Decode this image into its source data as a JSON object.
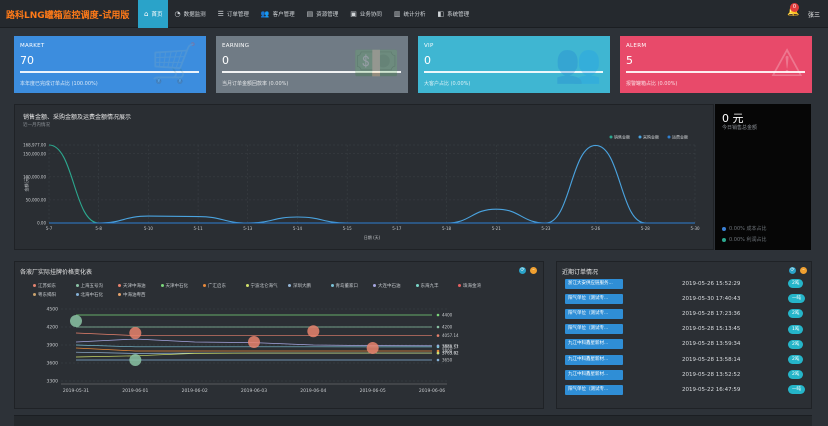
{
  "app": {
    "title": "路科LNG罐箱监控调度-试用版",
    "user": "张三",
    "notification_count": "0"
  },
  "nav": [
    {
      "label": "首页",
      "icon": "home-icon",
      "glyph": "⌂",
      "active": true
    },
    {
      "label": "数据监测",
      "icon": "gauge-icon",
      "glyph": "◔",
      "active": false
    },
    {
      "label": "订单管理",
      "icon": "list-icon",
      "glyph": "☰",
      "active": false
    },
    {
      "label": "客户管理",
      "icon": "users-icon",
      "glyph": "👥",
      "active": false
    },
    {
      "label": "资源管理",
      "icon": "folder-icon",
      "glyph": "▤",
      "active": false
    },
    {
      "label": "业务协同",
      "icon": "handshake-icon",
      "glyph": "▣",
      "active": false
    },
    {
      "label": "统计分析",
      "icon": "chart-icon",
      "glyph": "▥",
      "active": false
    },
    {
      "label": "系统管理",
      "icon": "settings-icon",
      "glyph": "◧",
      "active": false
    }
  ],
  "cards": [
    {
      "label": "MARKET",
      "value": "70",
      "sub": "本年度已完成订单占比 (100.00%)",
      "color": "#3c8dde",
      "icon": "cart-icon",
      "glyph": "🛒"
    },
    {
      "label": "EARNING",
      "value": "0",
      "sub": "当月订单金额回款率 (0.00%)",
      "color": "#707b85",
      "icon": "money-icon",
      "glyph": "💵"
    },
    {
      "label": "VIP",
      "value": "0",
      "sub": "大客户占比 (0.00%)",
      "color": "#3fb6d2",
      "icon": "users-icon",
      "glyph": "👥"
    },
    {
      "label": "ALERM",
      "value": "5",
      "sub": "报警罐箱占比 (0.00%)",
      "color": "#e84a6a",
      "icon": "warning-icon",
      "glyph": "⚠"
    }
  ],
  "sales_panel": {
    "title": "销售金额、采购金额及运费金额情况展示",
    "subtitle": "近一月内情况",
    "side_value": "0 元",
    "side_label": "今日销售总金额",
    "side_rows": [
      {
        "text": "0.00%  成本占比",
        "color": "#3a7fd4"
      },
      {
        "text": "0.00%  利润占比",
        "color": "#2ca88f"
      }
    ]
  },
  "price_panel": {
    "title": "各液厂实际挂牌价格变化表"
  },
  "orders_panel": {
    "title": "近期订单情况",
    "rows": [
      {
        "name": "浙江大安供应链服务...",
        "time": "2019-05-26 15:52:29",
        "badge": "2吨"
      },
      {
        "name": "阳气单位（测试专...",
        "time": "2019-05-30 17:40:43",
        "badge": "一吨"
      },
      {
        "name": "阳气单位（测试专...",
        "time": "2019-05-28 17:23:36",
        "badge": "2吨"
      },
      {
        "name": "阳气单位（测试专...",
        "time": "2019-05-28 15:13:45",
        "badge": "1吨"
      },
      {
        "name": "九江中科鑫星新材...",
        "time": "2019-05-28 13:59:34",
        "badge": "2吨"
      },
      {
        "name": "九江中科鑫星新材...",
        "time": "2019-05-28 13:58:14",
        "badge": "2吨"
      },
      {
        "name": "九江中科鑫星新材...",
        "time": "2019-05-28 13:52:52",
        "badge": "2吨"
      },
      {
        "name": "阳气单位（测试专...",
        "time": "2019-05-22 16:47:59",
        "badge": "一吨"
      }
    ]
  },
  "chart_data": [
    {
      "type": "line",
      "title": "",
      "xlabel": "日期 (天)",
      "ylabel": "金额(元)",
      "x": [
        "5-7",
        "5-8",
        "5-10",
        "5-11",
        "5-13",
        "5-14",
        "5-15",
        "5-17",
        "5-18",
        "5-21",
        "5-23",
        "5-26",
        "5-28",
        "5-30"
      ],
      "ylim": [
        0,
        168977
      ],
      "y_ticks": [
        "0.00",
        "50,000.00",
        "100,000.00",
        "150,000.00",
        "168,977.00"
      ],
      "legend_position": "top-right",
      "series": [
        {
          "name": "销售金额",
          "color": "#2ca88f",
          "values": [
            168977,
            0,
            0,
            0,
            0,
            0,
            0,
            0,
            0,
            0,
            0,
            0,
            0,
            0
          ]
        },
        {
          "name": "采购金额",
          "color": "#4aa3df",
          "values": [
            0,
            0,
            15000,
            14000,
            0,
            13000,
            0,
            0,
            0,
            30000,
            0,
            168000,
            0,
            0
          ]
        },
        {
          "name": "运费金额",
          "color": "#2f7fd0",
          "values": [
            0,
            0,
            0,
            0,
            0,
            0,
            0,
            0,
            0,
            0,
            0,
            0,
            0,
            0
          ]
        }
      ]
    },
    {
      "type": "line",
      "title": "",
      "x": [
        "2019-05-31",
        "2019-06-01",
        "2019-06-02",
        "2019-06-03",
        "2019-06-04",
        "2019-06-05",
        "2019-06-06"
      ],
      "ylim": [
        3300,
        4600
      ],
      "y_ticks": [
        "3300",
        "3600",
        "3900",
        "4200",
        "4500"
      ],
      "legend_position": "top",
      "series_names": [
        "江苏如东",
        "上海五号沟",
        "天津中海油",
        "天津中石化",
        "广汇启东",
        "宁波北仑海气",
        "深圳大鹏",
        "青岛董家口",
        "大连中石油",
        "东海九丰",
        "珠海金湾",
        "粤东揭阳",
        "北海中石化",
        "中海油粤西"
      ],
      "series_colors": [
        "#e2836f",
        "#8bc3a5",
        "#e8826d",
        "#7bd67a",
        "#e8893a",
        "#cfe06a",
        "#95b6d6",
        "#7bc1d6",
        "#a6a6e0",
        "#7ad6c8",
        "#e46060",
        "#c9a26d",
        "#84b0d6",
        "#e6a36b"
      ],
      "end_labels": [
        "4400",
        "4200",
        "4057.14",
        "3886.71",
        "3800",
        "3868.57",
        "3763.82",
        "3765.92",
        "3650"
      ],
      "series": [
        {
          "values": [
            4400,
            4400,
            4400,
            4400,
            4400,
            4400,
            4400
          ]
        },
        {
          "values": [
            4200,
            4200,
            4200,
            4200,
            4200,
            4200,
            4200
          ]
        },
        {
          "values": [
            4100,
            4057,
            4057,
            4057,
            4057,
            4057,
            4057
          ]
        },
        {
          "values": [
            3950,
            4000,
            3950,
            3940,
            3900,
            3890,
            3887
          ]
        },
        {
          "values": [
            3850,
            3800,
            3800,
            3800,
            3800,
            3800,
            3800
          ]
        },
        {
          "values": [
            3900,
            3870,
            3870,
            3870,
            3870,
            3869,
            3869
          ]
        },
        {
          "values": [
            3780,
            3760,
            3765,
            3764,
            3764,
            3764,
            3764
          ]
        },
        {
          "values": [
            3700,
            3720,
            3760,
            3766,
            3766,
            3766,
            3766
          ]
        },
        {
          "values": [
            3650,
            3650,
            3650,
            3650,
            3650,
            3650,
            3650
          ]
        }
      ],
      "markers": [
        {
          "x": "2019-05-31",
          "value": 4300,
          "color": "#8bc3a5"
        },
        {
          "x": "2019-06-01",
          "value": 4100,
          "color": "#e8826d"
        },
        {
          "x": "2019-06-01",
          "value": 3650,
          "color": "#8bc3a5"
        },
        {
          "x": "2019-06-03",
          "value": 3950,
          "color": "#e8826d"
        },
        {
          "x": "2019-06-04",
          "value": 4130,
          "color": "#e8826d"
        },
        {
          "x": "2019-06-05",
          "value": 3850,
          "color": "#e8826d"
        }
      ]
    }
  ]
}
